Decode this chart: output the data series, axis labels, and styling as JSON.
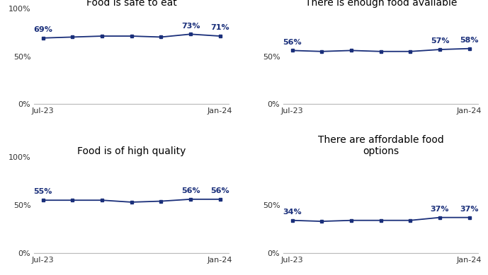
{
  "charts": [
    {
      "title": "Food is safe to eat",
      "values": [
        69,
        70,
        71,
        71,
        70,
        73,
        71
      ],
      "labeled_indices": [
        0,
        5,
        6
      ],
      "labels": [
        "69%",
        "73%",
        "71%"
      ],
      "yticks": [
        0,
        50,
        100
      ],
      "ytick_labels": [
        "0%",
        "50%",
        "100%"
      ],
      "show_100": true
    },
    {
      "title": "There is enough food available",
      "values": [
        56,
        55,
        56,
        55,
        55,
        57,
        58
      ],
      "labeled_indices": [
        0,
        5,
        6
      ],
      "labels": [
        "56%",
        "57%",
        "58%"
      ],
      "yticks": [
        0,
        50
      ],
      "ytick_labels": [
        "0%",
        "50%"
      ],
      "show_100": false
    },
    {
      "title": "Food is of high quality",
      "values": [
        55,
        55,
        55,
        53,
        54,
        56,
        56
      ],
      "labeled_indices": [
        0,
        5,
        6
      ],
      "labels": [
        "55%",
        "56%",
        "56%"
      ],
      "yticks": [
        0,
        50,
        100
      ],
      "ytick_labels": [
        "0%",
        "50%",
        "100%"
      ],
      "show_100": true
    },
    {
      "title": "There are affordable food\noptions",
      "values": [
        34,
        33,
        34,
        34,
        34,
        37,
        37
      ],
      "labeled_indices": [
        0,
        5,
        6
      ],
      "labels": [
        "34%",
        "37%",
        "37%"
      ],
      "yticks": [
        0,
        50
      ],
      "ytick_labels": [
        "0%",
        "50%"
      ],
      "show_100": false
    }
  ],
  "x_labels": [
    "Jul-23",
    "Jan-24"
  ],
  "line_color": "#1a2f7a",
  "marker": "s",
  "marker_size": 3.5,
  "label_color": "#1a2f7a",
  "label_fontsize": 8,
  "title_fontsize": 10,
  "tick_fontsize": 8,
  "background_color": "#ffffff",
  "ylim": [
    0,
    100
  ]
}
